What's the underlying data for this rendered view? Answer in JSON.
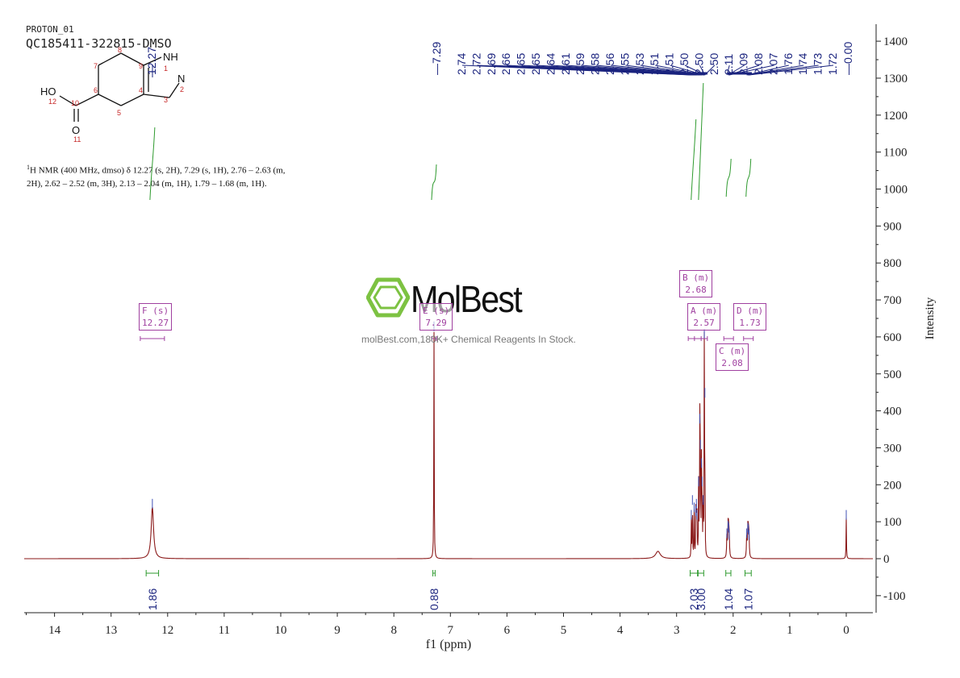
{
  "header": {
    "line1": "PROTON_01",
    "line2": "QC185411-322815-DMSO"
  },
  "description": {
    "superscript": "1",
    "text": "H NMR (400 MHz, dmso) δ 12.27 (s, 2H), 7.29 (s, 1H), 2.76 – 2.63 (m, 2H), 2.62 – 2.52 (m, 3H), 2.13 – 2.04 (m, 1H), 1.79 – 1.68 (m, 1H)."
  },
  "watermark": {
    "brand": "MolBest",
    "tagline": "molBest.com,180K+ Chemical Reagents In Stock."
  },
  "molecule": {
    "atoms": [
      "HO",
      "12",
      "10",
      "O",
      "11",
      "6",
      "7",
      "8",
      "9",
      "5",
      "4",
      "3",
      "NH",
      "1",
      "N",
      "2"
    ]
  },
  "multiplets": [
    {
      "id": "F",
      "label": "F (s)",
      "value": "12.27",
      "shift": 12.27
    },
    {
      "id": "E",
      "label": "E (s)",
      "value": "7.29",
      "shift": 7.29
    },
    {
      "id": "B",
      "label": "B (m)",
      "value": "2.68",
      "shift": 2.68
    },
    {
      "id": "A",
      "label": "A (m)",
      "value": "2.57",
      "shift": 2.57
    },
    {
      "id": "C",
      "label": "C (m)",
      "value": "2.08",
      "shift": 2.08
    },
    {
      "id": "D",
      "label": "D (m)",
      "value": "1.73",
      "shift": 1.73
    }
  ],
  "chart_data": {
    "type": "line",
    "xlabel": "f1 (ppm)",
    "ylabel": "Intensity",
    "xlim": [
      14.5,
      -0.5
    ],
    "ylim": [
      -150,
      1450
    ],
    "x_ticks": [
      14,
      13,
      12,
      11,
      10,
      9,
      8,
      7,
      6,
      5,
      4,
      3,
      2,
      1,
      0
    ],
    "y_ticks": [
      -100,
      0,
      100,
      200,
      300,
      400,
      500,
      600,
      700,
      800,
      900,
      1000,
      1100,
      1200,
      1300,
      1400
    ],
    "grid": false,
    "colors": {
      "spectrum": "#8b1a1a",
      "peak_labels": "#1a237e",
      "integral": "#2e9a2e",
      "multiplet": "#a040a0"
    },
    "peak_labels": [
      "12.27",
      "7.29",
      "2.74",
      "2.72",
      "2.69",
      "2.66",
      "2.65",
      "2.65",
      "2.64",
      "2.61",
      "2.59",
      "2.58",
      "2.56",
      "2.55",
      "2.53",
      "2.51",
      "2.51",
      "2.50",
      "2.50",
      "2.50",
      "2.11",
      "2.09",
      "2.08",
      "2.07",
      "1.76",
      "1.74",
      "1.73",
      "1.72",
      "0.00"
    ],
    "peaks": [
      {
        "x": 12.27,
        "y": 140,
        "w": 0.025
      },
      {
        "x": 7.29,
        "y": 620,
        "w": 0.004
      },
      {
        "x": 3.33,
        "y": 20,
        "w": 0.05
      },
      {
        "x": 2.74,
        "y": 110,
        "w": 0.004
      },
      {
        "x": 2.72,
        "y": 150,
        "w": 0.004
      },
      {
        "x": 2.69,
        "y": 130,
        "w": 0.004
      },
      {
        "x": 2.66,
        "y": 120,
        "w": 0.004
      },
      {
        "x": 2.65,
        "y": 140,
        "w": 0.004
      },
      {
        "x": 2.64,
        "y": 110,
        "w": 0.004
      },
      {
        "x": 2.61,
        "y": 200,
        "w": 0.004
      },
      {
        "x": 2.59,
        "y": 370,
        "w": 0.004
      },
      {
        "x": 2.58,
        "y": 300,
        "w": 0.004
      },
      {
        "x": 2.56,
        "y": 250,
        "w": 0.004
      },
      {
        "x": 2.55,
        "y": 200,
        "w": 0.004
      },
      {
        "x": 2.53,
        "y": 150,
        "w": 0.004
      },
      {
        "x": 2.51,
        "y": 600,
        "w": 0.003
      },
      {
        "x": 2.5,
        "y": 440,
        "w": 0.003
      },
      {
        "x": 2.11,
        "y": 60,
        "w": 0.006
      },
      {
        "x": 2.09,
        "y": 80,
        "w": 0.006
      },
      {
        "x": 2.08,
        "y": 75,
        "w": 0.006
      },
      {
        "x": 2.07,
        "y": 55,
        "w": 0.006
      },
      {
        "x": 1.76,
        "y": 60,
        "w": 0.006
      },
      {
        "x": 1.74,
        "y": 75,
        "w": 0.006
      },
      {
        "x": 1.73,
        "y": 70,
        "w": 0.006
      },
      {
        "x": 1.72,
        "y": 55,
        "w": 0.006
      },
      {
        "x": 0.0,
        "y": 110,
        "w": 0.004
      }
    ],
    "integrals": [
      {
        "label": "1.86",
        "from": 12.38,
        "to": 12.16
      },
      {
        "label": "0.88",
        "from": 7.31,
        "to": 7.27
      },
      {
        "label": "2.03",
        "from": 2.76,
        "to": 2.63
      },
      {
        "label": "3.00",
        "from": 2.62,
        "to": 2.52
      },
      {
        "label": "1.04",
        "from": 2.13,
        "to": 2.04
      },
      {
        "label": "1.07",
        "from": 1.79,
        "to": 1.68
      }
    ]
  }
}
